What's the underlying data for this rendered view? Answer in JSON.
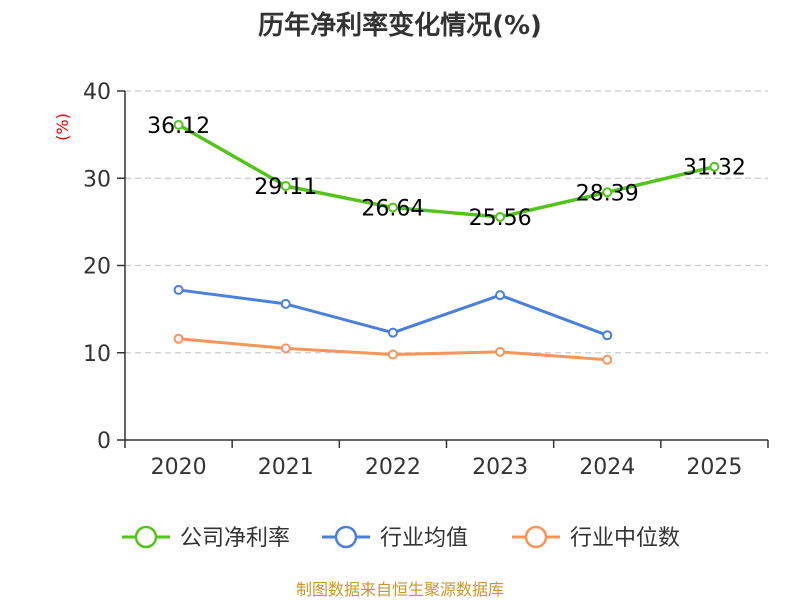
{
  "chart_data": {
    "type": "line",
    "title": "历年净利率变化情况(%)",
    "ylabel": "(%)",
    "xlabel": "",
    "categories": [
      "2020",
      "2021",
      "2022",
      "2023",
      "2024",
      "2025"
    ],
    "ylim": [
      0,
      40
    ],
    "yticks": [
      0,
      10,
      20,
      30,
      40
    ],
    "grid": true,
    "legend_position": "bottom",
    "series": [
      {
        "name": "公司净利率",
        "color": "#52c41a",
        "values": [
          36.12,
          29.11,
          26.64,
          25.56,
          28.39,
          31.32
        ],
        "labels": [
          "36.12",
          "29.11",
          "26.64",
          "25.56",
          "28.39",
          "31.32"
        ]
      },
      {
        "name": "行业均值",
        "color": "#4a7fdb",
        "values": [
          17.2,
          15.6,
          12.3,
          16.6,
          12.0,
          null
        ]
      },
      {
        "name": "行业中位数",
        "color": "#f7955b",
        "values": [
          11.6,
          10.5,
          9.8,
          10.1,
          9.2,
          null
        ]
      }
    ]
  },
  "source": "制图数据来自恒生聚源数据库"
}
